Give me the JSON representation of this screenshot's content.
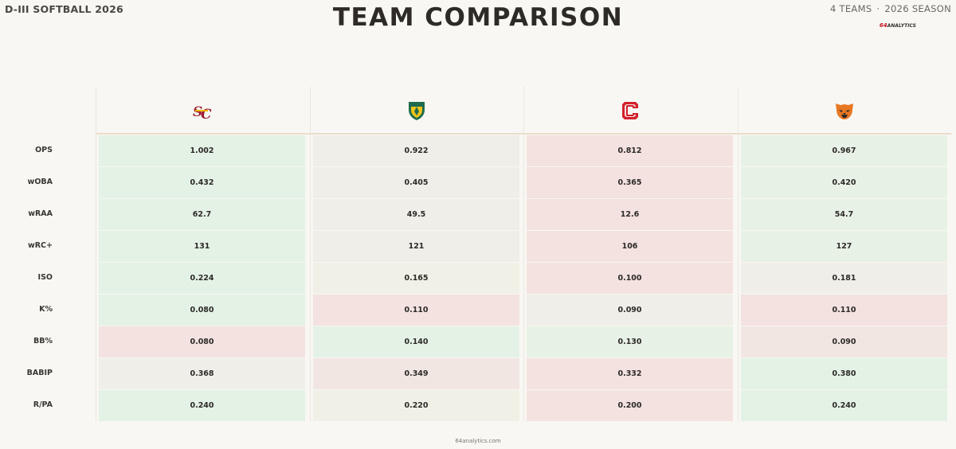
{
  "header": {
    "league": "D-III SOFTBALL 2026",
    "title": "TEAM COMPARISON",
    "teams_count": "4 TEAMS",
    "season": "2026 SEASON",
    "brand_num": "64",
    "brand_word": "ANALYTICS"
  },
  "footer": {
    "url": "64analytics.com"
  },
  "colors": {
    "good": "#e4f2e5",
    "good_mid": "#e8f1e5",
    "neutral": "#efeee8",
    "neutral_warm": "#f1f0e6",
    "bad_mid": "#f1e6e2",
    "bad": "#f3e2df",
    "team1_primary": "#9b1b30",
    "team1_secondary": "#f2b705",
    "team2_primary": "#1f6b4f",
    "team2_secondary": "#f0c419",
    "team3_primary": "#d3202b",
    "team4_primary": "#e87722"
  },
  "chart_data": {
    "type": "table",
    "title": "TEAM COMPARISON",
    "teams": [
      {
        "logo_icon": "sc-monogram-logo"
      },
      {
        "logo_icon": "shield-crest-logo"
      },
      {
        "logo_icon": "block-c-logo"
      },
      {
        "logo_icon": "panther-head-logo"
      }
    ],
    "metrics": [
      "OPS",
      "wOBA",
      "wRAA",
      "wRC+",
      "ISO",
      "K%",
      "BB%",
      "BABIP",
      "R/PA"
    ],
    "values": [
      [
        "1.002",
        "0.922",
        "0.812",
        "0.967"
      ],
      [
        "0.432",
        "0.405",
        "0.365",
        "0.420"
      ],
      [
        "62.7",
        "49.5",
        "12.6",
        "54.7"
      ],
      [
        "131",
        "121",
        "106",
        "127"
      ],
      [
        "0.224",
        "0.165",
        "0.100",
        "0.181"
      ],
      [
        "0.080",
        "0.110",
        "0.090",
        "0.110"
      ],
      [
        "0.080",
        "0.140",
        "0.130",
        "0.090"
      ],
      [
        "0.368",
        "0.349",
        "0.332",
        "0.380"
      ],
      [
        "0.240",
        "0.220",
        "0.200",
        "0.240"
      ]
    ],
    "shading": [
      [
        "good",
        "neutral",
        "bad",
        "good_mid"
      ],
      [
        "good",
        "neutral",
        "bad",
        "good_mid"
      ],
      [
        "good",
        "neutral",
        "bad",
        "good_mid"
      ],
      [
        "good",
        "neutral",
        "bad",
        "good_mid"
      ],
      [
        "good",
        "neutral_warm",
        "bad",
        "neutral"
      ],
      [
        "good",
        "bad",
        "neutral",
        "bad"
      ],
      [
        "bad",
        "good",
        "good_mid",
        "bad_mid"
      ],
      [
        "neutral",
        "bad_mid",
        "bad",
        "good"
      ],
      [
        "good",
        "neutral_warm",
        "bad",
        "good"
      ]
    ]
  }
}
